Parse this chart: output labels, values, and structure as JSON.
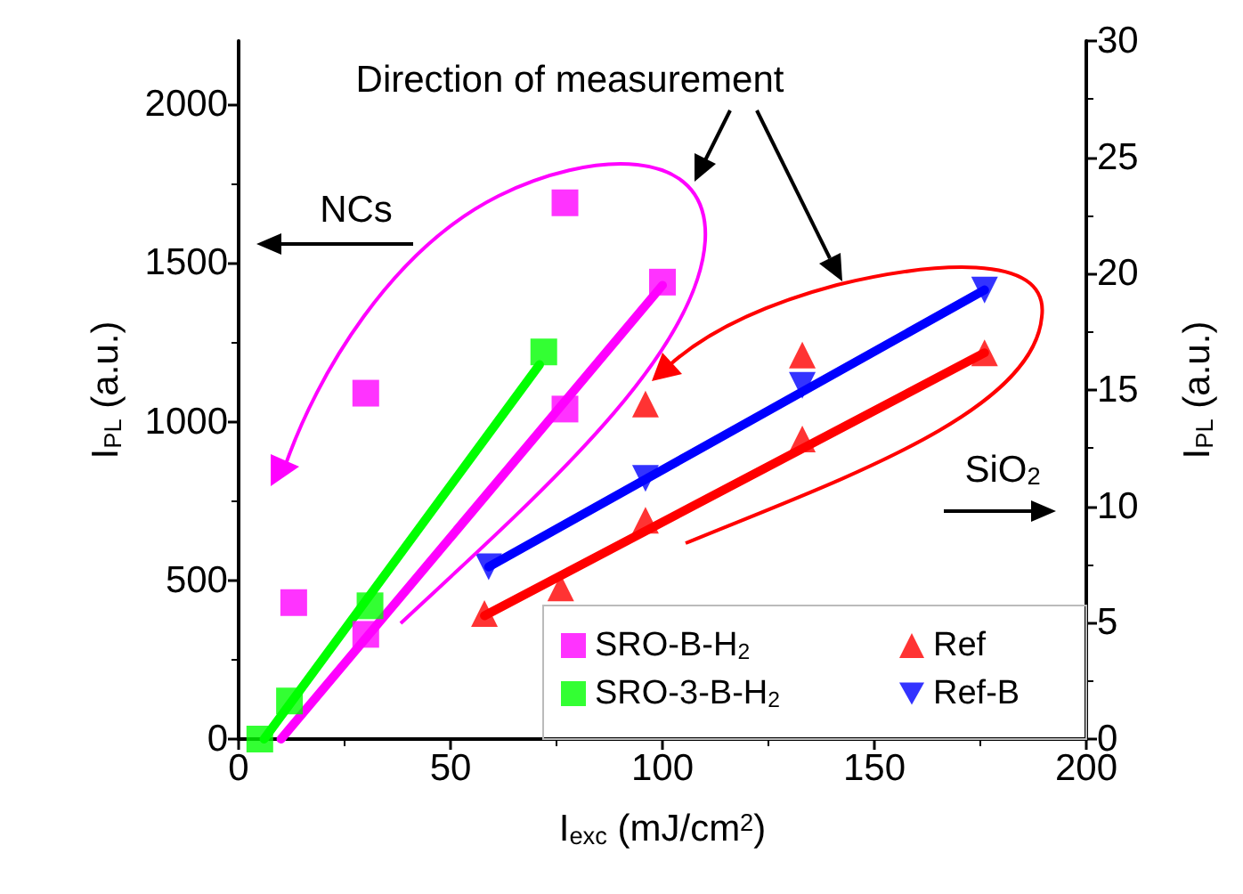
{
  "chart_data": {
    "type": "scatter",
    "xlabel": "I$_{exc}$ (mJ/cm$^{2}$)",
    "ylabel": "I$_{PL}$ (a.u.)",
    "y2label": "I$_{PL}$ (a.u.)",
    "xlim": [
      0,
      200
    ],
    "xticks": [
      0,
      50,
      100,
      150,
      200
    ],
    "ylim": [
      0,
      2200
    ],
    "yticks": [
      0,
      500,
      1000,
      1500,
      2000
    ],
    "y2lim": [
      0,
      30
    ],
    "y2ticks": [
      0,
      5,
      10,
      15,
      20,
      25,
      30
    ],
    "grid": false,
    "legend": "bottom right",
    "annotations": [
      "Direction of measurement",
      "NCs",
      "SiO$_{2}$"
    ],
    "series": [
      {
        "name": "SRO-B-H$_{2}$",
        "marker": "square",
        "color": "#ff00ff",
        "x": [
          13,
          30,
          30,
          77,
          77,
          100
        ],
        "values": [
          430,
          330,
          1090,
          1040,
          1690,
          1440
        ]
      },
      {
        "name": "SRO-3-B-H$_{2}$",
        "marker": "square",
        "color": "#00ff00",
        "x": [
          5,
          12,
          31,
          72
        ],
        "values": [
          0,
          120,
          420,
          1220
        ]
      },
      {
        "name": "Ref",
        "marker": "triangle",
        "color": "#ff0000",
        "axis": "y2",
        "x": [
          58,
          76,
          96,
          96,
          133,
          133,
          176
        ],
        "values": [
          5.4,
          6.5,
          9.4,
          14.4,
          12.9,
          16.5,
          16.6
        ]
      },
      {
        "name": "Ref-B",
        "marker": "triangle-down",
        "color": "#0000ff",
        "axis": "y2",
        "x": [
          59,
          96,
          133,
          176
        ],
        "values": [
          7.4,
          11.2,
          15.2,
          19.3
        ]
      },
      {
        "type": "line",
        "marker": "none",
        "color": "#ff00ff",
        "x": [
          10,
          100
        ],
        "values": [
          0,
          1430
        ]
      },
      {
        "type": "line",
        "marker": "none",
        "color": "#00ff00",
        "x": [
          6,
          71
        ],
        "values": [
          0,
          1180
        ]
      },
      {
        "type": "line",
        "marker": "none",
        "color": "#ff0000",
        "axis": "y2",
        "x": [
          58,
          176
        ],
        "values": [
          5.3,
          16.6
        ]
      },
      {
        "type": "line",
        "marker": "none",
        "color": "#0000ff",
        "axis": "y2",
        "x": [
          59,
          176
        ],
        "values": [
          7.4,
          19.3
        ]
      }
    ]
  }
}
